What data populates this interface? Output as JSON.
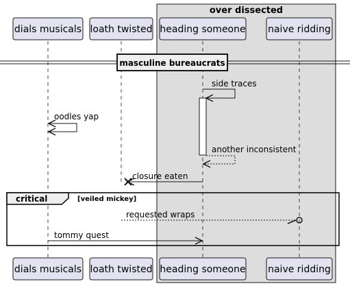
{
  "box": {
    "title": "over dissected"
  },
  "participants": [
    {
      "id": "dials",
      "label": "dials musicals"
    },
    {
      "id": "loath",
      "label": "loath twisted"
    },
    {
      "id": "heading",
      "label": "heading someone"
    },
    {
      "id": "naive",
      "label": "naive ridding"
    }
  ],
  "divider": {
    "label": "masculine bureaucrats"
  },
  "messages": [
    {
      "from": "heading",
      "to": "heading",
      "label": "side traces",
      "style": "solid"
    },
    {
      "from": "dials",
      "to": "dials",
      "label": "oodles yap",
      "style": "solid"
    },
    {
      "from": "heading",
      "to": "heading",
      "label": "another inconsistent",
      "style": "dashed"
    },
    {
      "from": "heading",
      "to": "loath",
      "label": "closure eaten",
      "style": "solid",
      "end": "destroy"
    },
    {
      "from": "loath",
      "to": "naive",
      "label": "requested wraps",
      "style": "dashed",
      "end": "lost"
    },
    {
      "from": "dials",
      "to": "heading",
      "label": "tommy quest",
      "style": "solid"
    }
  ],
  "fragment": {
    "kind": "critical",
    "guard": "[veiled mickey]"
  },
  "colors": {
    "participant_fill": "#e2e2f0",
    "participant_border": "#181818",
    "box_fill": "#dddddd",
    "activation_fill": "#ffffff"
  }
}
